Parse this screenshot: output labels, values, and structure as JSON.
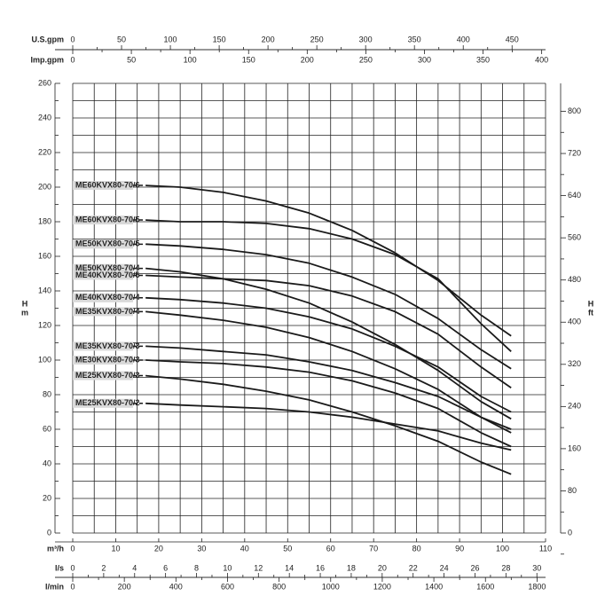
{
  "chart_data": {
    "type": "line",
    "x": [
      17,
      25,
      35,
      45,
      55,
      65,
      75,
      85,
      95,
      102
    ],
    "xlim": [
      0,
      110
    ],
    "xticks": [
      0,
      10,
      20,
      30,
      40,
      50,
      60,
      70,
      80,
      90,
      100,
      110
    ],
    "x_label": "m³/h",
    "ylim": [
      0,
      260
    ],
    "yticks": [
      0,
      20,
      40,
      60,
      80,
      100,
      120,
      140,
      160,
      180,
      200,
      220,
      240,
      260
    ],
    "y_label": "H",
    "y_unit": "m",
    "y2lim": [
      0,
      853
    ],
    "y2ticks": [
      0,
      80,
      160,
      240,
      320,
      400,
      480,
      560,
      640,
      720,
      800
    ],
    "y2_label": "H",
    "y2_unit": "ft",
    "grid": true,
    "top_axes": [
      {
        "label": "U.S.gpm",
        "lim": [
          0,
          484.3
        ],
        "ticks": [
          0,
          50,
          100,
          150,
          200,
          250,
          300,
          350,
          400,
          450
        ]
      },
      {
        "label": "Imp.gpm",
        "lim": [
          0,
          403.3
        ],
        "ticks": [
          0,
          50,
          100,
          150,
          200,
          250,
          300,
          350,
          400
        ]
      }
    ],
    "bottom_axes": [
      {
        "label": "l/s",
        "lim": [
          0,
          30.56
        ],
        "ticks": [
          0,
          2,
          4,
          6,
          8,
          10,
          12,
          14,
          16,
          18,
          20,
          22,
          24,
          26,
          28,
          30
        ]
      },
      {
        "label": "l/min",
        "lim": [
          0,
          1833
        ],
        "ticks": [
          0,
          200,
          400,
          600,
          800,
          1000,
          1200,
          1400,
          1600,
          1800
        ]
      }
    ],
    "series": [
      {
        "name": "ME60KVX80-70/6",
        "color": "#1a1a1a",
        "values": [
          201,
          200,
          197,
          192,
          185,
          175,
          162,
          146,
          126,
          114
        ]
      },
      {
        "name": "ME60KVX80-70/5",
        "color": "#1a1a1a",
        "values": [
          181,
          180,
          180,
          179,
          176,
          170,
          161,
          147,
          121,
          105
        ]
      },
      {
        "name": "ME50KVX80-70/5",
        "color": "#1a1a1a",
        "values": [
          167,
          166,
          164,
          161,
          156,
          148,
          138,
          124,
          106,
          95
        ]
      },
      {
        "name": "ME50KVX80-70/4",
        "color": "#1a1a1a",
        "values": [
          153,
          151,
          147,
          141,
          133,
          122,
          109,
          94,
          76,
          66
        ]
      },
      {
        "name": "ME40KVX80-70/5",
        "color": "#1a1a1a",
        "values": [
          149,
          148,
          147,
          146,
          143,
          137,
          128,
          115,
          96,
          84
        ]
      },
      {
        "name": "ME40KVX80-70/4",
        "color": "#1a1a1a",
        "values": [
          136,
          135,
          133,
          130,
          125,
          118,
          108,
          96,
          79,
          70
        ]
      },
      {
        "name": "ME35KVX80-70/4",
        "color": "#1a1a1a",
        "values": [
          128,
          126,
          123,
          119,
          113,
          105,
          95,
          83,
          67,
          58
        ]
      },
      {
        "name": "ME35KVX80-70/3",
        "color": "#1a1a1a",
        "values": [
          108,
          107,
          105,
          103,
          99,
          94,
          87,
          79,
          67,
          60
        ]
      },
      {
        "name": "ME30KVX80-70/3",
        "color": "#1a1a1a",
        "values": [
          100,
          99,
          98,
          96,
          93,
          88,
          81,
          72,
          58,
          50
        ]
      },
      {
        "name": "ME25KVX80-70/3",
        "color": "#1a1a1a",
        "values": [
          91,
          89,
          86,
          82,
          77,
          70,
          62,
          53,
          41,
          34
        ]
      },
      {
        "name": "ME25KVX80-70/2",
        "color": "#1a1a1a",
        "values": [
          75,
          74,
          73,
          72,
          70,
          67,
          63,
          59,
          52,
          48
        ]
      }
    ]
  }
}
